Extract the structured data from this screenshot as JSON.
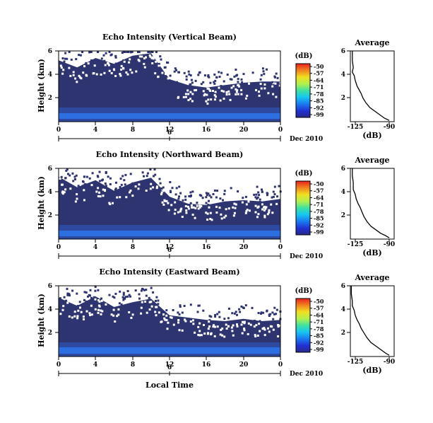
{
  "chart_data": [
    {
      "type": "heatmap",
      "title": "Echo Intensity (Vertical Beam)",
      "ylabel": "Height (km)",
      "x_ticks": [
        "0",
        "4",
        "8",
        "12",
        "16",
        "20",
        "0"
      ],
      "y_ticks": [
        "6",
        "4",
        "2"
      ],
      "xlim": [
        0,
        24
      ],
      "ylim": [
        0,
        6
      ],
      "day_label": "6",
      "month_label": "Dec 2010",
      "colorbar": {
        "unit": "(dB)",
        "ticks": [
          "-50",
          "-57",
          "-64",
          "-71",
          "-78",
          "-85",
          "-92",
          "-99"
        ]
      },
      "echo_top_km": [
        [
          0,
          5.2
        ],
        [
          2,
          4.6
        ],
        [
          4,
          5.4
        ],
        [
          6,
          4.9
        ],
        [
          8,
          5.6
        ],
        [
          10,
          5.8
        ],
        [
          12,
          3.6
        ],
        [
          14,
          3.1
        ],
        [
          16,
          2.9
        ],
        [
          18,
          3.1
        ],
        [
          20,
          3.3
        ],
        [
          22,
          3.4
        ],
        [
          24,
          3.4
        ]
      ],
      "average_profile": {
        "title": "Average",
        "xlabel": "(dB)",
        "x_ticks": [
          "-125",
          "-90"
        ],
        "y_ticks": [
          "6",
          "4",
          "2"
        ],
        "xlim": [
          -130,
          -85
        ],
        "ylim": [
          0,
          6
        ],
        "points": [
          [
            -128,
            6.0
          ],
          [
            -128,
            5.2
          ],
          [
            -127,
            4.6
          ],
          [
            -128,
            4.2
          ],
          [
            -126,
            3.9
          ],
          [
            -125,
            3.5
          ],
          [
            -123,
            3.0
          ],
          [
            -121,
            2.7
          ],
          [
            -119,
            2.4
          ],
          [
            -117,
            2.0
          ],
          [
            -114,
            1.6
          ],
          [
            -110,
            1.2
          ],
          [
            -105,
            0.9
          ],
          [
            -100,
            0.6
          ],
          [
            -95,
            0.3
          ],
          [
            -90,
            0.1
          ]
        ]
      }
    },
    {
      "type": "heatmap",
      "title": "Echo Intensity (Northward Beam)",
      "ylabel": "Height (km)",
      "x_ticks": [
        "0",
        "4",
        "8",
        "12",
        "16",
        "20",
        "0"
      ],
      "y_ticks": [
        "6",
        "4",
        "2"
      ],
      "xlim": [
        0,
        24
      ],
      "ylim": [
        0,
        6
      ],
      "day_label": "6",
      "month_label": "Dec 2010",
      "colorbar": {
        "unit": "(dB)",
        "ticks": [
          "-50",
          "-57",
          "-64",
          "-71",
          "-78",
          "-85",
          "-92",
          "-99"
        ]
      },
      "echo_top_km": [
        [
          0,
          5.3
        ],
        [
          2,
          4.4
        ],
        [
          4,
          5.0
        ],
        [
          6,
          4.1
        ],
        [
          8,
          4.8
        ],
        [
          10,
          5.2
        ],
        [
          12,
          3.6
        ],
        [
          14,
          3.0
        ],
        [
          16,
          2.9
        ],
        [
          18,
          3.2
        ],
        [
          20,
          3.3
        ],
        [
          22,
          3.2
        ],
        [
          24,
          3.4
        ]
      ],
      "average_profile": {
        "title": "Average",
        "xlabel": "(dB)",
        "x_ticks": [
          "-125",
          "-90"
        ],
        "y_ticks": [
          "6",
          "4",
          "2"
        ],
        "xlim": [
          -130,
          -85
        ],
        "ylim": [
          0,
          6
        ],
        "points": [
          [
            -128,
            6.0
          ],
          [
            -128,
            5.4
          ],
          [
            -127,
            4.8
          ],
          [
            -127,
            4.2
          ],
          [
            -125,
            3.8
          ],
          [
            -124,
            3.4
          ],
          [
            -122,
            3.0
          ],
          [
            -120,
            2.7
          ],
          [
            -118,
            2.3
          ],
          [
            -116,
            1.9
          ],
          [
            -113,
            1.5
          ],
          [
            -109,
            1.1
          ],
          [
            -104,
            0.8
          ],
          [
            -99,
            0.5
          ],
          [
            -94,
            0.3
          ],
          [
            -90,
            0.1
          ]
        ]
      }
    },
    {
      "type": "heatmap",
      "title": "Echo Intensity (Eastward Beam)",
      "ylabel": "Height (km)",
      "x_ticks": [
        "0",
        "4",
        "8",
        "12",
        "16",
        "20",
        "0"
      ],
      "y_ticks": [
        "6",
        "4",
        "2"
      ],
      "xlim": [
        0,
        24
      ],
      "ylim": [
        0,
        6
      ],
      "day_label": "6",
      "month_label": "Dec 2010",
      "xlabel": "Local Time",
      "colorbar": {
        "unit": "(dB)",
        "ticks": [
          "-50",
          "-57",
          "-64",
          "-71",
          "-78",
          "-85",
          "-92",
          "-99"
        ]
      },
      "echo_top_km": [
        [
          0,
          5.0
        ],
        [
          2,
          4.3
        ],
        [
          4,
          5.1
        ],
        [
          6,
          4.2
        ],
        [
          8,
          4.6
        ],
        [
          10,
          4.9
        ],
        [
          12,
          3.5
        ],
        [
          14,
          3.3
        ],
        [
          16,
          3.1
        ],
        [
          18,
          3.0
        ],
        [
          20,
          3.2
        ],
        [
          22,
          3.0
        ],
        [
          24,
          3.1
        ]
      ],
      "average_profile": {
        "title": "Average",
        "xlabel": "(dB)",
        "x_ticks": [
          "-125",
          "-90"
        ],
        "y_ticks": [
          "6",
          "4",
          "2"
        ],
        "xlim": [
          -130,
          -85
        ],
        "ylim": [
          0,
          6
        ],
        "points": [
          [
            -129,
            6.0
          ],
          [
            -129,
            5.3
          ],
          [
            -128,
            4.7
          ],
          [
            -128,
            4.3
          ],
          [
            -126,
            3.9
          ],
          [
            -125,
            3.5
          ],
          [
            -123,
            3.1
          ],
          [
            -121,
            2.8
          ],
          [
            -119,
            2.4
          ],
          [
            -116,
            2.0
          ],
          [
            -113,
            1.6
          ],
          [
            -109,
            1.2
          ],
          [
            -104,
            0.9
          ],
          [
            -99,
            0.6
          ],
          [
            -94,
            0.3
          ],
          [
            -90,
            0.1
          ]
        ]
      }
    }
  ],
  "colors": {
    "background": "#2e3470",
    "surface": "#2d6fe0",
    "colorbar_stops": [
      "#2a2a8a",
      "#2030d0",
      "#1a7af0",
      "#17c8f0",
      "#40e0a0",
      "#b0f050",
      "#f0e020",
      "#f08020",
      "#e82020"
    ]
  }
}
